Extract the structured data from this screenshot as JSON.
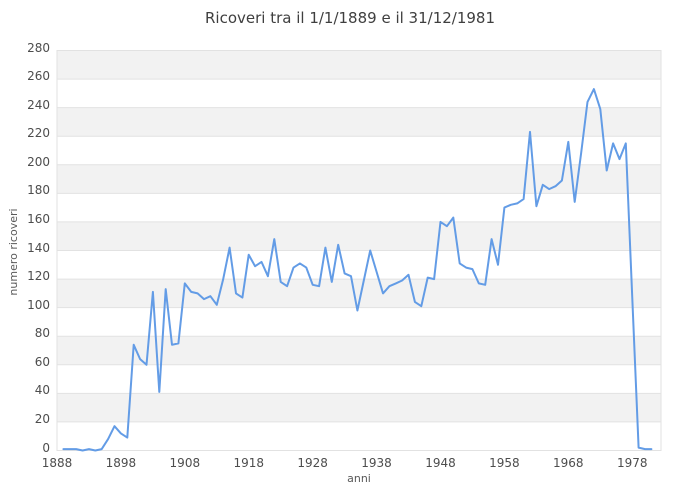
{
  "page": {
    "background": "#ffffff"
  },
  "chart_data": {
    "type": "line",
    "title": "Ricoveri tra il 1/1/1889 e il 31/12/1981",
    "xlabel": "anni",
    "ylabel": "numero ricoveri",
    "legend": "none",
    "grid": "horizontal gridlines every 20 with alternating gray/white bands",
    "xlim": [
      1888,
      1982.5
    ],
    "ylim": [
      0,
      280
    ],
    "x_tick_labels": [
      1888,
      1898,
      1908,
      1918,
      1928,
      1938,
      1948,
      1958,
      1968,
      1978
    ],
    "y_tick_labels": [
      0,
      20,
      40,
      60,
      80,
      100,
      120,
      140,
      160,
      180,
      200,
      220,
      240,
      260,
      280
    ],
    "band_color": "#f2f2f2",
    "gridline_color": "#e2e2e2",
    "tick_text_color": "#4d4d4d",
    "series": [
      {
        "name": "numero ricoveri",
        "color": "#639ce6",
        "x": [
          1889,
          1890,
          1891,
          1892,
          1893,
          1894,
          1895,
          1896,
          1897,
          1898,
          1899,
          1900,
          1901,
          1902,
          1903,
          1904,
          1905,
          1906,
          1907,
          1908,
          1909,
          1910,
          1911,
          1912,
          1913,
          1914,
          1915,
          1916,
          1917,
          1918,
          1919,
          1920,
          1921,
          1922,
          1923,
          1924,
          1925,
          1926,
          1927,
          1928,
          1929,
          1930,
          1931,
          1932,
          1933,
          1934,
          1935,
          1936,
          1937,
          1938,
          1939,
          1940,
          1941,
          1942,
          1943,
          1944,
          1945,
          1946,
          1947,
          1948,
          1949,
          1950,
          1951,
          1952,
          1953,
          1954,
          1955,
          1956,
          1957,
          1958,
          1959,
          1960,
          1961,
          1962,
          1963,
          1964,
          1965,
          1966,
          1967,
          1968,
          1969,
          1970,
          1971,
          1972,
          1973,
          1974,
          1975,
          1976,
          1977,
          1978,
          1979,
          1980,
          1981
        ],
        "y": [
          1,
          1,
          1,
          0,
          1,
          0,
          1,
          8,
          17,
          12,
          9,
          74,
          64,
          60,
          111,
          41,
          113,
          74,
          75,
          117,
          111,
          110,
          106,
          108,
          102,
          120,
          142,
          110,
          107,
          137,
          129,
          132,
          122,
          148,
          118,
          115,
          128,
          131,
          128,
          116,
          115,
          142,
          118,
          144,
          124,
          122,
          98,
          119,
          140,
          125,
          110,
          115,
          117,
          119,
          123,
          104,
          101,
          121,
          120,
          160,
          157,
          163,
          131,
          128,
          127,
          117,
          116,
          148,
          130,
          170,
          172,
          173,
          176,
          223,
          171,
          186,
          183,
          185,
          189,
          216,
          174,
          208,
          244,
          253,
          239,
          196,
          215,
          204,
          215,
          108,
          2,
          1,
          1
        ]
      }
    ]
  }
}
